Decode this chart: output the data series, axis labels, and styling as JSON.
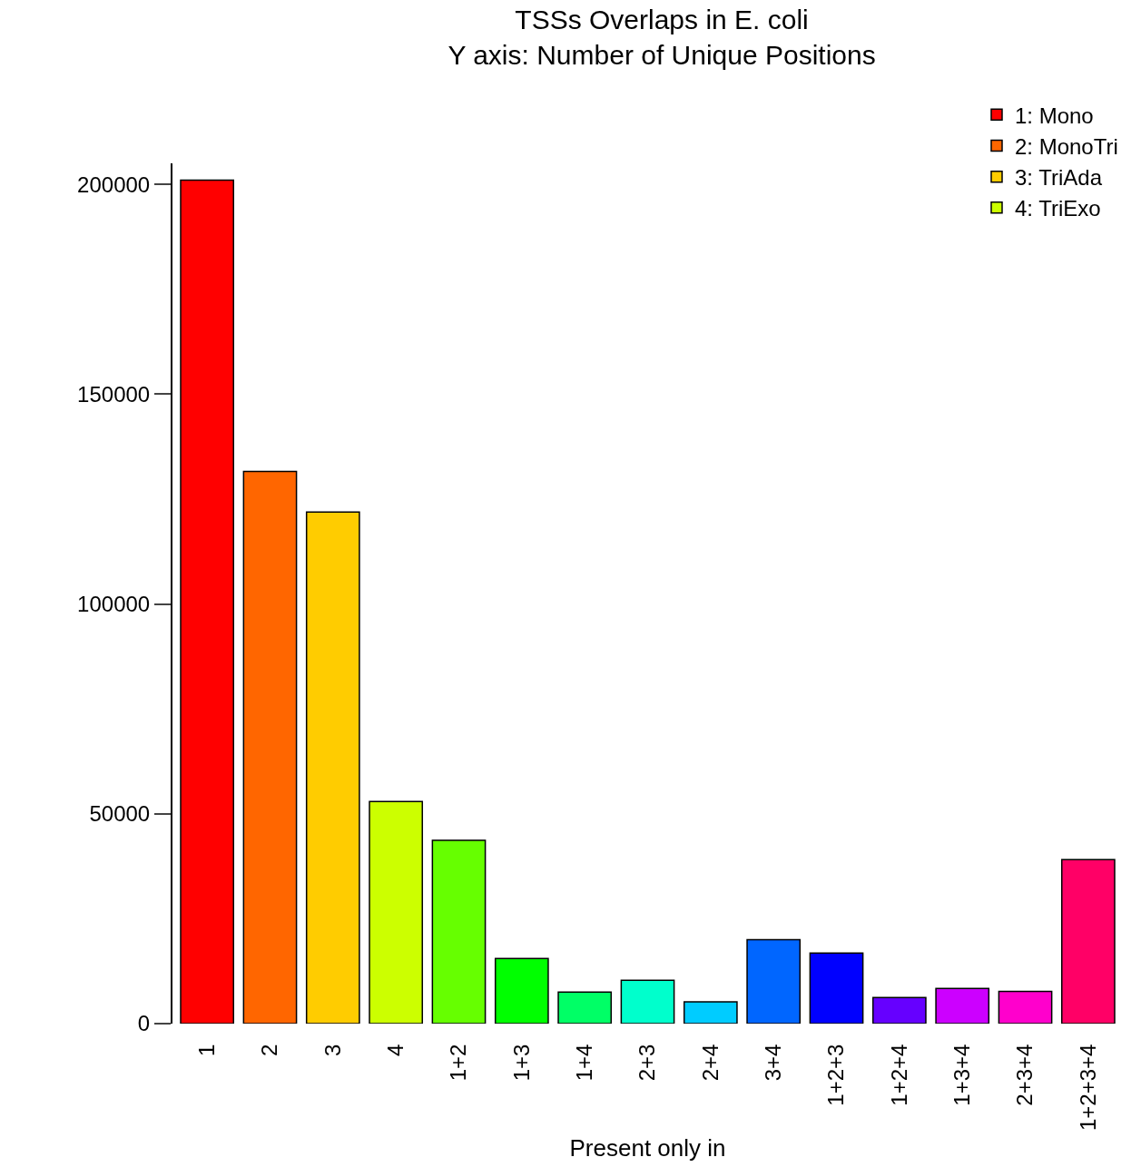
{
  "chart_data": {
    "type": "bar",
    "title": "TSSs Overlaps in E. coli",
    "subtitle": "Y axis: Number of Unique Positions",
    "xlabel": "Present only in",
    "categories": [
      "1",
      "2",
      "3",
      "4",
      "1+2",
      "1+3",
      "1+4",
      "2+3",
      "2+4",
      "3+4",
      "1+2+3",
      "1+2+4",
      "1+3+4",
      "2+3+4",
      "1+2+3+4"
    ],
    "series": [
      {
        "name": "1: Mono",
        "color": "#ff0000",
        "values": [
          201000,
          null,
          null,
          null,
          null,
          null,
          null,
          null,
          null,
          null,
          null,
          null,
          null,
          null,
          null
        ]
      },
      {
        "name": "2: MonoTri",
        "color": "#ff6600",
        "values": [
          null,
          131600,
          null,
          null,
          null,
          null,
          null,
          null,
          null,
          null,
          null,
          null,
          null,
          null,
          null
        ]
      },
      {
        "name": "3: TriAda",
        "color": "#ffcc00",
        "values": [
          null,
          null,
          121900,
          null,
          null,
          null,
          null,
          null,
          null,
          null,
          null,
          null,
          null,
          null,
          null
        ]
      },
      {
        "name": "4: TriExo",
        "color": "#ccff00",
        "values": [
          null,
          null,
          null,
          52900,
          null,
          null,
          null,
          null,
          null,
          null,
          null,
          null,
          null,
          null,
          null
        ]
      },
      {
        "colors": [
          null,
          null,
          null,
          null,
          "#66ff00",
          "#00ff00",
          "#00ff66",
          "#00ffcc",
          "#00ccff",
          "#0066ff",
          "#0000ff",
          "#6600ff",
          "#cc00ff",
          "#ff00cc",
          "#ff0066"
        ],
        "values": [
          null,
          null,
          null,
          null,
          43700,
          15500,
          7500,
          10300,
          5200,
          20000,
          16800,
          6200,
          8400,
          7700,
          39100
        ]
      }
    ],
    "ylim": [
      0,
      205000
    ],
    "yticks": [
      0,
      50000,
      100000,
      150000,
      200000
    ],
    "legend": "top right"
  }
}
